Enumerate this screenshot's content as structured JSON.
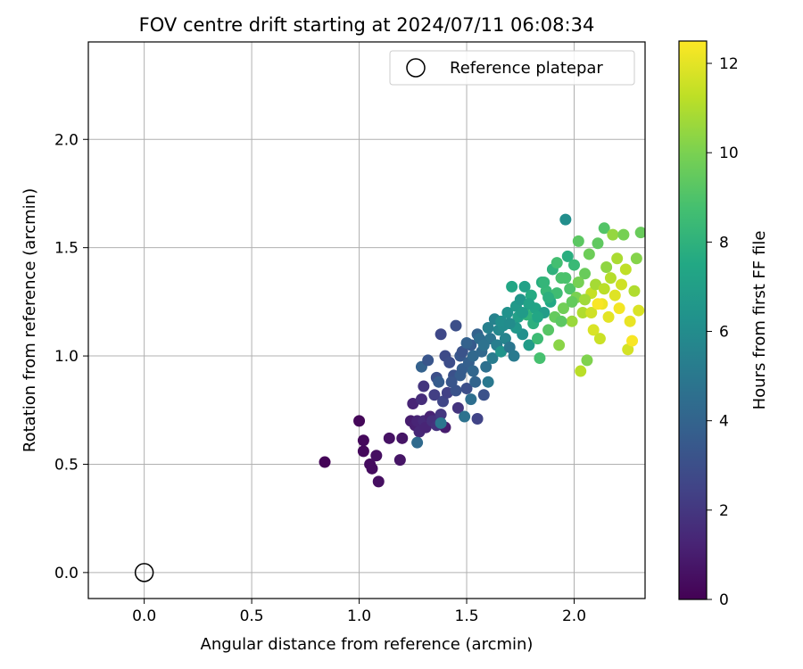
{
  "chart_data": {
    "type": "scatter",
    "title": "FOV centre drift starting at 2024/07/11 06:08:34",
    "xlabel": "Angular distance from reference (arcmin)",
    "ylabel": "Rotation from reference (arcmin)",
    "xlim": [
      -0.26,
      2.33
    ],
    "ylim": [
      -0.12,
      2.45
    ],
    "x_ticks": [
      0.0,
      0.5,
      1.0,
      1.5,
      2.0
    ],
    "y_ticks": [
      0.0,
      0.5,
      1.0,
      1.5,
      2.0
    ],
    "x_tick_labels": [
      "0.0",
      "0.5",
      "1.0",
      "1.5",
      "2.0"
    ],
    "y_tick_labels": [
      "0.0",
      "0.5",
      "1.0",
      "1.5",
      "2.0"
    ],
    "grid": true,
    "legend": {
      "position": "top-right",
      "entries": [
        "Reference platepar"
      ]
    },
    "reference_point": {
      "x": 0.0,
      "y": 0.0,
      "label": "Reference platepar"
    },
    "colorbar": {
      "label": "Hours from first FF file",
      "colormap": "viridis",
      "range": [
        0,
        12.5
      ],
      "ticks": [
        0,
        2,
        4,
        6,
        8,
        10,
        12
      ],
      "tick_labels": [
        "0",
        "2",
        "4",
        "6",
        "8",
        "10",
        "12"
      ]
    },
    "points": [
      {
        "x": 0.84,
        "y": 0.51,
        "h": 0.1
      },
      {
        "x": 1.0,
        "y": 0.7,
        "h": 0.2
      },
      {
        "x": 1.02,
        "y": 0.61,
        "h": 0.3
      },
      {
        "x": 1.02,
        "y": 0.56,
        "h": 0.3
      },
      {
        "x": 1.05,
        "y": 0.5,
        "h": 0.4
      },
      {
        "x": 1.06,
        "y": 0.48,
        "h": 0.4
      },
      {
        "x": 1.08,
        "y": 0.54,
        "h": 0.5
      },
      {
        "x": 1.09,
        "y": 0.42,
        "h": 0.5
      },
      {
        "x": 1.14,
        "y": 0.62,
        "h": 0.6
      },
      {
        "x": 1.19,
        "y": 0.52,
        "h": 0.7
      },
      {
        "x": 1.2,
        "y": 0.62,
        "h": 0.7
      },
      {
        "x": 1.24,
        "y": 0.7,
        "h": 1.0
      },
      {
        "x": 1.25,
        "y": 0.78,
        "h": 1.3
      },
      {
        "x": 1.26,
        "y": 0.68,
        "h": 1.1
      },
      {
        "x": 1.27,
        "y": 0.7,
        "h": 1.3
      },
      {
        "x": 1.28,
        "y": 0.65,
        "h": 1.4
      },
      {
        "x": 1.29,
        "y": 0.8,
        "h": 1.6
      },
      {
        "x": 1.3,
        "y": 0.86,
        "h": 1.9
      },
      {
        "x": 1.3,
        "y": 0.7,
        "h": 1.5
      },
      {
        "x": 1.31,
        "y": 0.67,
        "h": 1.3
      },
      {
        "x": 1.33,
        "y": 0.72,
        "h": 1.2
      },
      {
        "x": 1.34,
        "y": 0.7,
        "h": 1.7
      },
      {
        "x": 1.36,
        "y": 0.68,
        "h": 1.8
      },
      {
        "x": 1.38,
        "y": 0.73,
        "h": 2.0
      },
      {
        "x": 1.4,
        "y": 0.67,
        "h": 1.0
      },
      {
        "x": 1.27,
        "y": 0.6,
        "h": 4.3
      },
      {
        "x": 1.29,
        "y": 0.95,
        "h": 3.9
      },
      {
        "x": 1.32,
        "y": 0.98,
        "h": 3.3
      },
      {
        "x": 1.35,
        "y": 0.82,
        "h": 2.3
      },
      {
        "x": 1.36,
        "y": 0.9,
        "h": 3.0
      },
      {
        "x": 1.37,
        "y": 0.88,
        "h": 3.6
      },
      {
        "x": 1.38,
        "y": 0.69,
        "h": 4.9
      },
      {
        "x": 1.39,
        "y": 0.79,
        "h": 2.6
      },
      {
        "x": 1.4,
        "y": 1.0,
        "h": 2.8
      },
      {
        "x": 1.41,
        "y": 0.83,
        "h": 2.4
      },
      {
        "x": 1.42,
        "y": 0.97,
        "h": 2.9
      },
      {
        "x": 1.44,
        "y": 0.91,
        "h": 3.1
      },
      {
        "x": 1.45,
        "y": 0.84,
        "h": 3.2
      },
      {
        "x": 1.46,
        "y": 0.76,
        "h": 1.9
      },
      {
        "x": 1.47,
        "y": 1.0,
        "h": 3.4
      },
      {
        "x": 1.48,
        "y": 0.94,
        "h": 3.7
      },
      {
        "x": 1.49,
        "y": 0.72,
        "h": 4.7
      },
      {
        "x": 1.5,
        "y": 0.85,
        "h": 3.0
      },
      {
        "x": 1.51,
        "y": 0.97,
        "h": 3.8
      },
      {
        "x": 1.52,
        "y": 0.8,
        "h": 4.5
      },
      {
        "x": 1.53,
        "y": 0.93,
        "h": 4.1
      },
      {
        "x": 1.54,
        "y": 0.88,
        "h": 4.0
      },
      {
        "x": 1.55,
        "y": 0.71,
        "h": 2.5
      },
      {
        "x": 1.38,
        "y": 1.1,
        "h": 2.7
      },
      {
        "x": 1.45,
        "y": 1.14,
        "h": 3.0
      },
      {
        "x": 1.48,
        "y": 1.02,
        "h": 3.2
      },
      {
        "x": 1.52,
        "y": 1.05,
        "h": 3.5
      },
      {
        "x": 1.55,
        "y": 1.1,
        "h": 3.9
      },
      {
        "x": 1.57,
        "y": 1.02,
        "h": 4.2
      },
      {
        "x": 1.58,
        "y": 0.82,
        "h": 3.1
      },
      {
        "x": 1.59,
        "y": 0.95,
        "h": 4.6
      },
      {
        "x": 1.6,
        "y": 0.88,
        "h": 5.0
      },
      {
        "x": 1.61,
        "y": 1.08,
        "h": 4.8
      },
      {
        "x": 1.62,
        "y": 0.99,
        "h": 5.2
      },
      {
        "x": 1.63,
        "y": 1.17,
        "h": 5.5
      },
      {
        "x": 1.64,
        "y": 1.05,
        "h": 5.3
      },
      {
        "x": 1.65,
        "y": 1.12,
        "h": 5.8
      },
      {
        "x": 1.66,
        "y": 1.02,
        "h": 6.4
      },
      {
        "x": 1.67,
        "y": 1.14,
        "h": 6.0
      },
      {
        "x": 1.68,
        "y": 1.08,
        "h": 5.6
      },
      {
        "x": 1.69,
        "y": 1.2,
        "h": 6.3
      },
      {
        "x": 1.7,
        "y": 1.04,
        "h": 4.9
      },
      {
        "x": 1.71,
        "y": 1.32,
        "h": 7.4
      },
      {
        "x": 1.72,
        "y": 1.0,
        "h": 5.1
      },
      {
        "x": 1.73,
        "y": 1.23,
        "h": 6.7
      },
      {
        "x": 1.74,
        "y": 1.18,
        "h": 7.0
      },
      {
        "x": 1.75,
        "y": 1.26,
        "h": 6.5
      },
      {
        "x": 1.76,
        "y": 1.1,
        "h": 6.2
      },
      {
        "x": 1.77,
        "y": 1.32,
        "h": 7.1
      },
      {
        "x": 1.78,
        "y": 1.19,
        "h": 8.1
      },
      {
        "x": 1.79,
        "y": 1.05,
        "h": 6.8
      },
      {
        "x": 1.8,
        "y": 1.28,
        "h": 7.6
      },
      {
        "x": 1.81,
        "y": 1.15,
        "h": 7.9
      },
      {
        "x": 1.82,
        "y": 1.22,
        "h": 7.3
      },
      {
        "x": 1.83,
        "y": 1.08,
        "h": 8.5
      },
      {
        "x": 1.84,
        "y": 0.99,
        "h": 8.8
      },
      {
        "x": 1.85,
        "y": 1.34,
        "h": 7.7
      },
      {
        "x": 1.86,
        "y": 1.2,
        "h": 6.9
      },
      {
        "x": 1.87,
        "y": 1.3,
        "h": 8.3
      },
      {
        "x": 1.88,
        "y": 1.12,
        "h": 9.2
      },
      {
        "x": 1.89,
        "y": 1.25,
        "h": 7.5
      },
      {
        "x": 1.9,
        "y": 1.4,
        "h": 8.0
      },
      {
        "x": 1.91,
        "y": 1.18,
        "h": 9.5
      },
      {
        "x": 1.92,
        "y": 1.29,
        "h": 8.6
      },
      {
        "x": 1.93,
        "y": 1.05,
        "h": 10.3
      },
      {
        "x": 1.94,
        "y": 1.36,
        "h": 8.9
      },
      {
        "x": 1.95,
        "y": 1.22,
        "h": 9.8
      },
      {
        "x": 1.96,
        "y": 1.63,
        "h": 6.1
      },
      {
        "x": 1.97,
        "y": 1.46,
        "h": 7.8
      },
      {
        "x": 1.98,
        "y": 1.31,
        "h": 9.0
      },
      {
        "x": 1.99,
        "y": 1.16,
        "h": 10.6
      },
      {
        "x": 2.0,
        "y": 1.42,
        "h": 8.4
      },
      {
        "x": 2.01,
        "y": 1.27,
        "h": 10.0
      },
      {
        "x": 2.02,
        "y": 1.53,
        "h": 9.3
      },
      {
        "x": 2.03,
        "y": 0.93,
        "h": 11.2
      },
      {
        "x": 2.04,
        "y": 1.2,
        "h": 11.0
      },
      {
        "x": 2.05,
        "y": 1.38,
        "h": 9.6
      },
      {
        "x": 2.06,
        "y": 0.98,
        "h": 10.1
      },
      {
        "x": 2.07,
        "y": 1.47,
        "h": 9.7
      },
      {
        "x": 2.08,
        "y": 1.29,
        "h": 11.4
      },
      {
        "x": 2.09,
        "y": 1.12,
        "h": 11.8
      },
      {
        "x": 2.1,
        "y": 1.33,
        "h": 10.8
      },
      {
        "x": 2.11,
        "y": 1.52,
        "h": 9.4
      },
      {
        "x": 2.12,
        "y": 1.08,
        "h": 11.5
      },
      {
        "x": 2.13,
        "y": 1.24,
        "h": 12.2
      },
      {
        "x": 2.14,
        "y": 1.59,
        "h": 9.1
      },
      {
        "x": 2.15,
        "y": 1.41,
        "h": 10.4
      },
      {
        "x": 2.16,
        "y": 1.18,
        "h": 12.0
      },
      {
        "x": 2.17,
        "y": 1.36,
        "h": 11.1
      },
      {
        "x": 2.18,
        "y": 1.56,
        "h": 10.5
      },
      {
        "x": 2.19,
        "y": 1.28,
        "h": 11.9
      },
      {
        "x": 2.2,
        "y": 1.45,
        "h": 10.9
      },
      {
        "x": 2.21,
        "y": 1.22,
        "h": 12.3
      },
      {
        "x": 2.22,
        "y": 1.33,
        "h": 11.6
      },
      {
        "x": 2.23,
        "y": 1.56,
        "h": 9.9
      },
      {
        "x": 2.24,
        "y": 1.4,
        "h": 11.3
      },
      {
        "x": 2.25,
        "y": 1.03,
        "h": 11.7
      },
      {
        "x": 2.26,
        "y": 1.16,
        "h": 12.1
      },
      {
        "x": 2.27,
        "y": 1.07,
        "h": 12.4
      },
      {
        "x": 2.28,
        "y": 1.3,
        "h": 11.0
      },
      {
        "x": 2.29,
        "y": 1.45,
        "h": 10.2
      },
      {
        "x": 2.3,
        "y": 1.21,
        "h": 11.8
      },
      {
        "x": 2.31,
        "y": 1.57,
        "h": 9.6
      },
      {
        "x": 1.56,
        "y": 1.08,
        "h": 4.4
      },
      {
        "x": 1.58,
        "y": 1.05,
        "h": 4.7
      },
      {
        "x": 1.53,
        "y": 1.0,
        "h": 4.2
      },
      {
        "x": 1.6,
        "y": 1.13,
        "h": 5.4
      },
      {
        "x": 1.47,
        "y": 0.91,
        "h": 3.6
      },
      {
        "x": 1.43,
        "y": 0.88,
        "h": 3.3
      },
      {
        "x": 1.5,
        "y": 1.06,
        "h": 3.9
      },
      {
        "x": 1.66,
        "y": 1.16,
        "h": 6.1
      },
      {
        "x": 1.73,
        "y": 1.13,
        "h": 6.6
      },
      {
        "x": 1.79,
        "y": 1.24,
        "h": 7.2
      },
      {
        "x": 1.86,
        "y": 1.34,
        "h": 8.2
      },
      {
        "x": 1.92,
        "y": 1.43,
        "h": 8.7
      },
      {
        "x": 1.96,
        "y": 1.36,
        "h": 8.9
      },
      {
        "x": 2.02,
        "y": 1.34,
        "h": 9.9
      },
      {
        "x": 2.05,
        "y": 1.26,
        "h": 10.7
      },
      {
        "x": 2.08,
        "y": 1.2,
        "h": 11.6
      },
      {
        "x": 2.11,
        "y": 1.24,
        "h": 12.4
      },
      {
        "x": 2.14,
        "y": 1.31,
        "h": 11.2
      },
      {
        "x": 1.88,
        "y": 1.27,
        "h": 7.9
      },
      {
        "x": 1.83,
        "y": 1.18,
        "h": 7.4
      },
      {
        "x": 1.76,
        "y": 1.2,
        "h": 6.8
      },
      {
        "x": 1.7,
        "y": 1.15,
        "h": 6.0
      },
      {
        "x": 1.94,
        "y": 1.16,
        "h": 9.3
      },
      {
        "x": 1.99,
        "y": 1.25,
        "h": 9.5
      }
    ]
  }
}
